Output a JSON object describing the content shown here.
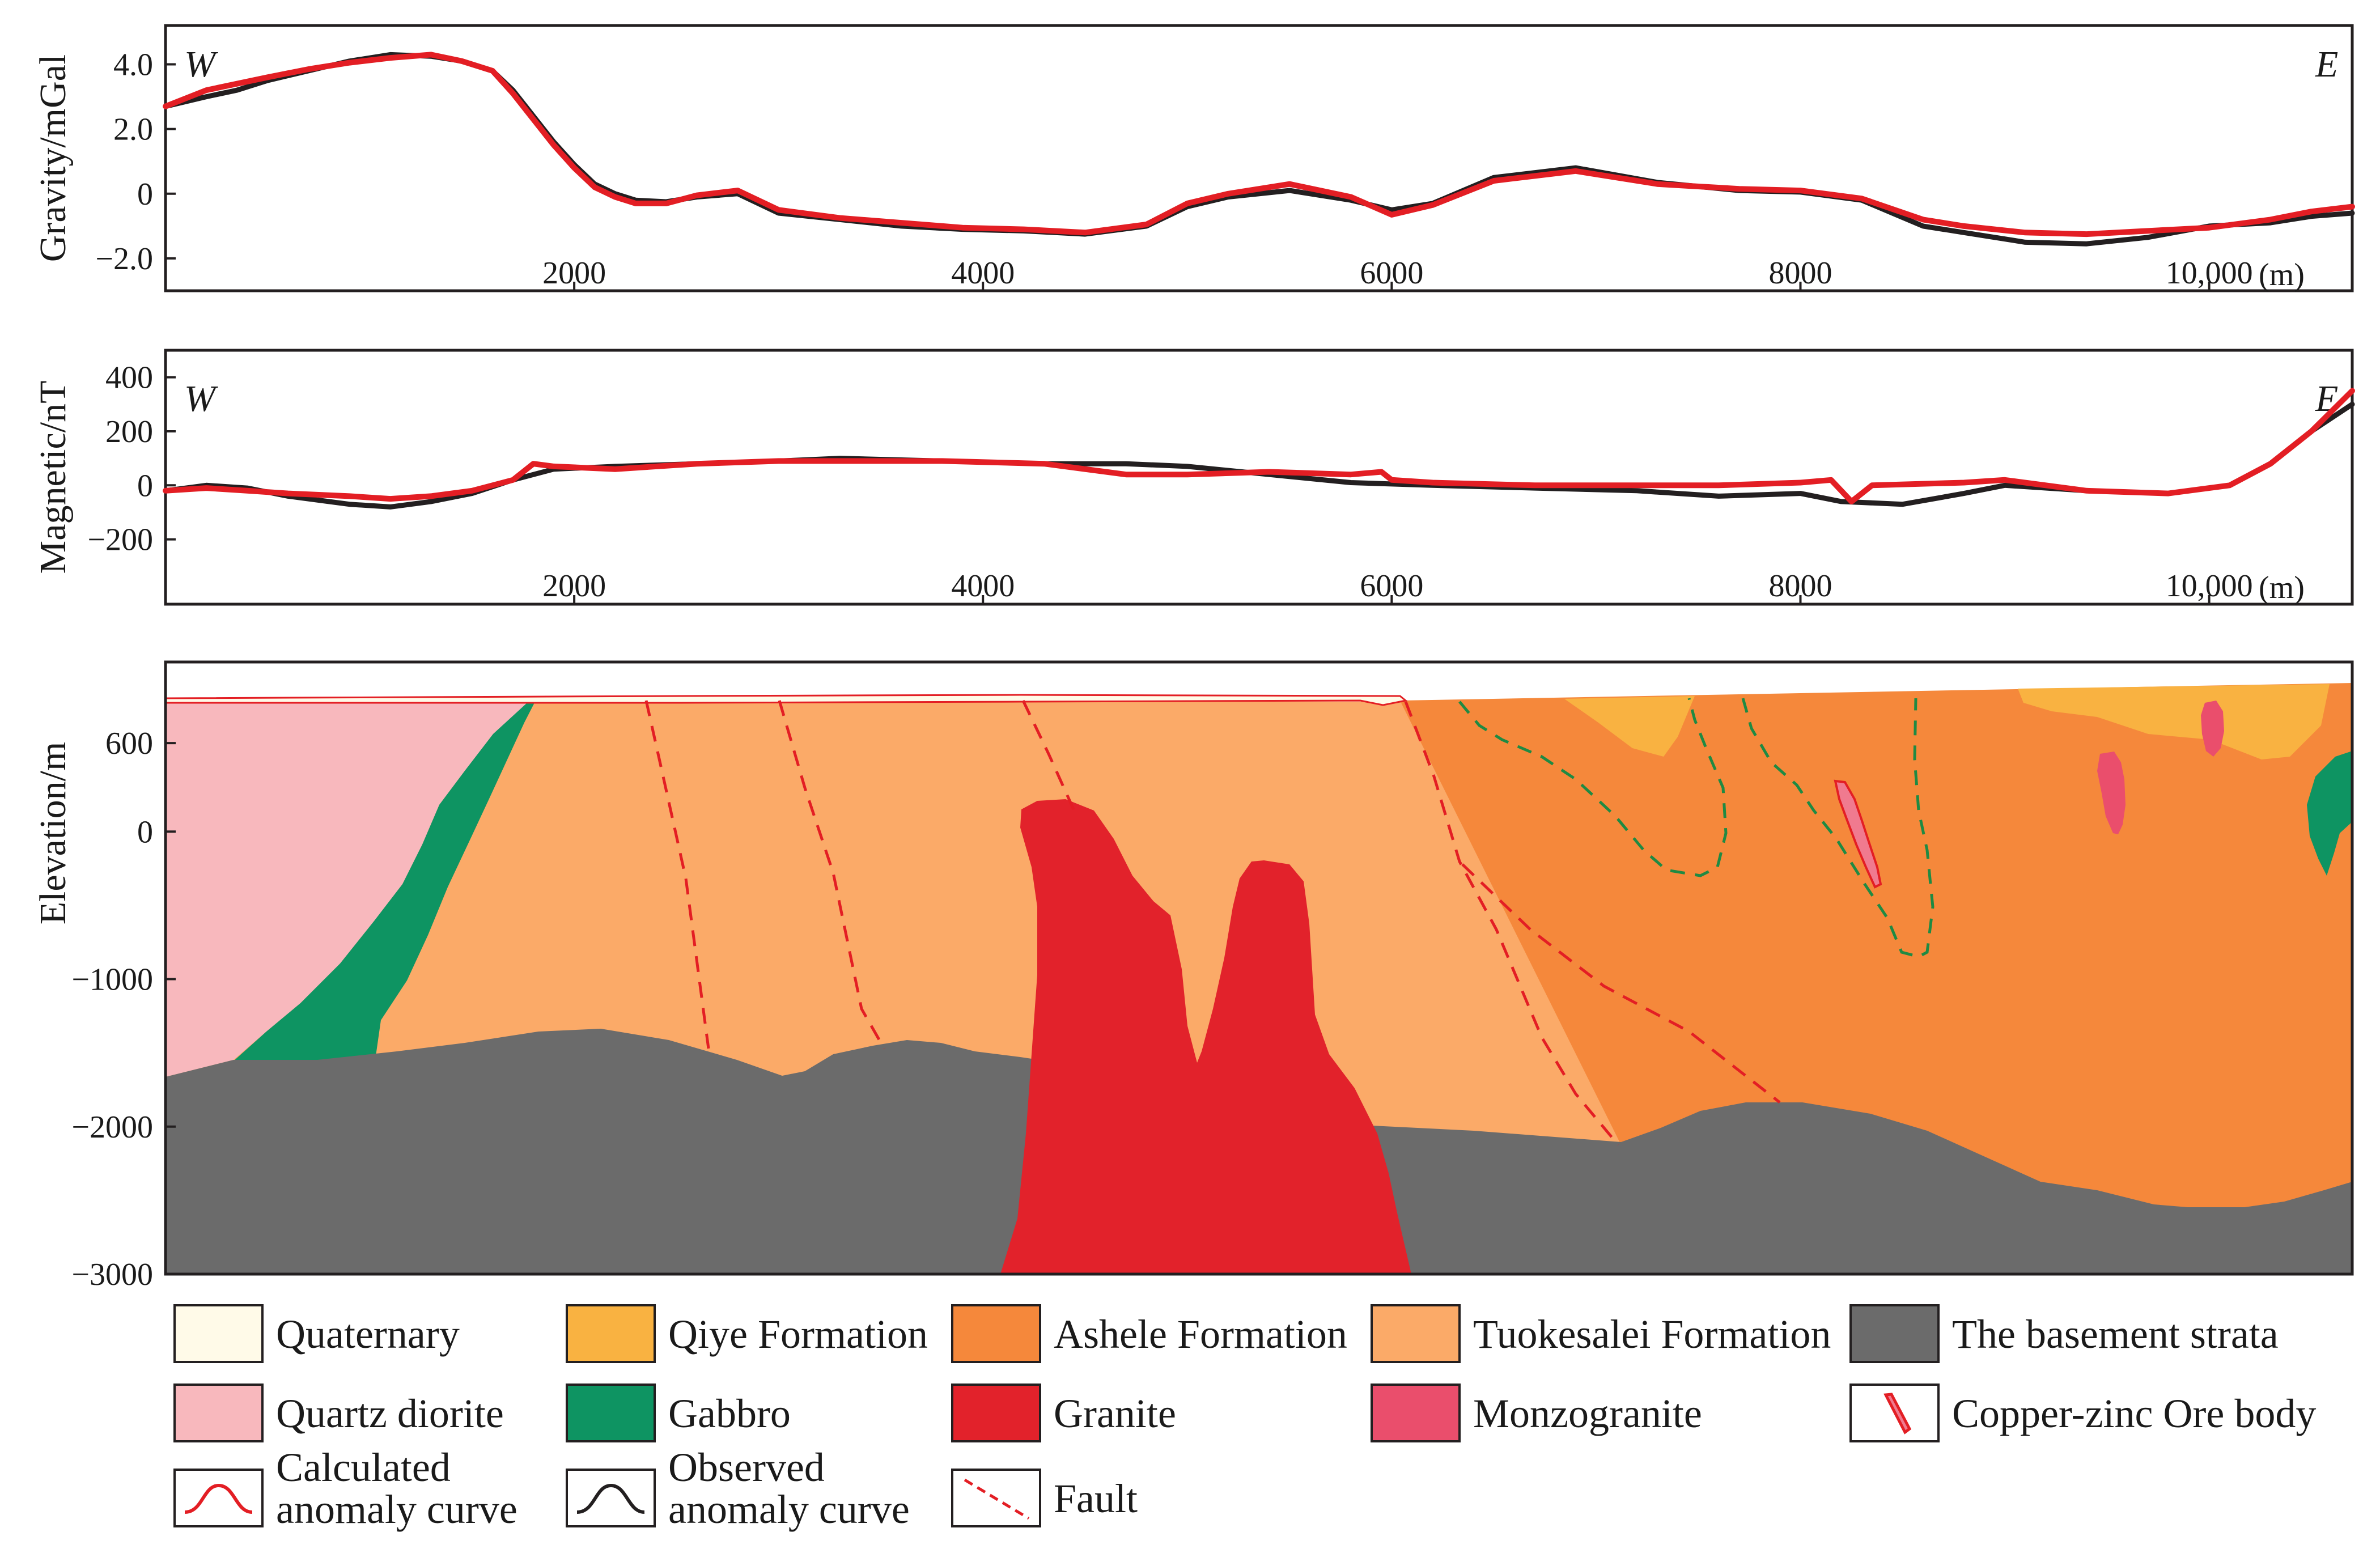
{
  "chart_data": [
    {
      "type": "line",
      "id": "gravity",
      "ylabel": "Gravity/mGal",
      "xlim": [
        0,
        10700
      ],
      "ylim": [
        -3,
        5.2
      ],
      "yticks": [
        4,
        2,
        0,
        -2
      ],
      "ytick_labels": [
        "4.0",
        "2.0",
        "0",
        "−2.0"
      ],
      "xticks": [
        2000,
        4000,
        6000,
        8000,
        10000
      ],
      "xtick_labels": [
        "2000",
        "4000",
        "6000",
        "8000",
        "10,000"
      ],
      "x_unit": "(m)",
      "west_label": "W",
      "east_label": "E",
      "series": [
        {
          "name": "Observed anomaly curve",
          "color": "#231f20",
          "x": [
            0,
            200,
            350,
            500,
            700,
            900,
            1100,
            1300,
            1450,
            1600,
            1700,
            1800,
            1900,
            2000,
            2100,
            2200,
            2300,
            2450,
            2600,
            2800,
            3000,
            3300,
            3600,
            3900,
            4200,
            4500,
            4800,
            5000,
            5200,
            5500,
            5800,
            6000,
            6200,
            6500,
            6900,
            7300,
            7700,
            8000,
            8300,
            8600,
            8800,
            9100,
            9400,
            9700,
            10000,
            10300,
            10500,
            10700
          ],
          "values": [
            2.7,
            3.0,
            3.2,
            3.5,
            3.8,
            4.1,
            4.3,
            4.25,
            4.1,
            3.8,
            3.2,
            2.4,
            1.6,
            0.9,
            0.3,
            0.0,
            -0.2,
            -0.25,
            -0.1,
            0.0,
            -0.6,
            -0.8,
            -1.0,
            -1.1,
            -1.15,
            -1.25,
            -1.0,
            -0.4,
            -0.1,
            0.1,
            -0.2,
            -0.5,
            -0.3,
            0.5,
            0.8,
            0.35,
            0.1,
            0.05,
            -0.2,
            -1.0,
            -1.2,
            -1.5,
            -1.55,
            -1.35,
            -1.0,
            -0.9,
            -0.7,
            -0.6
          ]
        },
        {
          "name": "Calculated anomaly curve",
          "color": "#e31e24",
          "x": [
            0,
            200,
            350,
            500,
            700,
            900,
            1100,
            1300,
            1450,
            1600,
            1700,
            1800,
            1900,
            2000,
            2100,
            2200,
            2300,
            2450,
            2600,
            2800,
            3000,
            3300,
            3600,
            3900,
            4200,
            4500,
            4800,
            5000,
            5200,
            5500,
            5800,
            6000,
            6200,
            6500,
            6900,
            7300,
            7700,
            8000,
            8300,
            8600,
            8800,
            9100,
            9400,
            9700,
            10000,
            10300,
            10500,
            10700
          ],
          "values": [
            2.7,
            3.2,
            3.4,
            3.6,
            3.85,
            4.05,
            4.2,
            4.3,
            4.1,
            3.8,
            3.1,
            2.3,
            1.5,
            0.8,
            0.2,
            -0.1,
            -0.3,
            -0.3,
            -0.05,
            0.1,
            -0.5,
            -0.75,
            -0.9,
            -1.05,
            -1.1,
            -1.2,
            -0.95,
            -0.3,
            0.0,
            0.3,
            -0.1,
            -0.65,
            -0.35,
            0.4,
            0.7,
            0.3,
            0.15,
            0.1,
            -0.15,
            -0.8,
            -1.0,
            -1.2,
            -1.25,
            -1.15,
            -1.05,
            -0.8,
            -0.55,
            -0.4
          ]
        }
      ]
    },
    {
      "type": "line",
      "id": "magnetic",
      "ylabel": "Magnetic/nT",
      "xlim": [
        0,
        10700
      ],
      "ylim": [
        -440,
        500
      ],
      "yticks": [
        400,
        200,
        0,
        -200
      ],
      "ytick_labels": [
        "400",
        "200",
        "0",
        "−200"
      ],
      "xticks": [
        2000,
        4000,
        6000,
        8000,
        10000
      ],
      "xtick_labels": [
        "2000",
        "4000",
        "6000",
        "8000",
        "10,000"
      ],
      "x_unit": "(m)",
      "west_label": "W",
      "east_label": "E",
      "series": [
        {
          "name": "Observed anomaly curve",
          "color": "#231f20",
          "x": [
            0,
            200,
            400,
            600,
            900,
            1100,
            1300,
            1500,
            1700,
            1900,
            2200,
            2600,
            3000,
            3300,
            3800,
            4300,
            4700,
            5000,
            5400,
            5800,
            6200,
            6700,
            7200,
            7600,
            8000,
            8200,
            8500,
            8800,
            9000,
            9400,
            9800,
            10100,
            10300,
            10500,
            10700
          ],
          "values": [
            -20,
            0,
            -10,
            -40,
            -70,
            -80,
            -60,
            -30,
            20,
            60,
            70,
            80,
            90,
            100,
            90,
            80,
            80,
            70,
            40,
            10,
            0,
            -10,
            -20,
            -40,
            -30,
            -60,
            -70,
            -30,
            0,
            -20,
            -30,
            0,
            80,
            200,
            300
          ]
        },
        {
          "name": "Calculated anomaly curve",
          "color": "#e31e24",
          "x": [
            0,
            200,
            400,
            600,
            900,
            1100,
            1300,
            1500,
            1700,
            1800,
            1900,
            2200,
            2600,
            3000,
            3300,
            3800,
            4300,
            4700,
            5000,
            5400,
            5800,
            5950,
            6000,
            6200,
            6700,
            7200,
            7600,
            8000,
            8150,
            8250,
            8350,
            8800,
            9000,
            9400,
            9800,
            10100,
            10300,
            10500,
            10700
          ],
          "values": [
            -20,
            -10,
            -20,
            -30,
            -40,
            -50,
            -40,
            -20,
            20,
            80,
            70,
            60,
            80,
            90,
            90,
            90,
            80,
            40,
            40,
            50,
            40,
            50,
            20,
            10,
            0,
            0,
            0,
            10,
            20,
            -60,
            0,
            10,
            20,
            -20,
            -30,
            0,
            80,
            200,
            350
          ]
        }
      ]
    },
    {
      "type": "area",
      "id": "geologic-section",
      "ylabel": "Elevation/m",
      "xlim": [
        0,
        10700
      ],
      "ylim": [
        -3000,
        1150
      ],
      "yticks": [
        600,
        0,
        -1000,
        -2000,
        -3000
      ],
      "ytick_labels": [
        "600",
        "0",
        "−1000",
        "−2000",
        "−3000"
      ],
      "units": [
        {
          "name": "The basement strata",
          "color": "#6b6b6b"
        },
        {
          "name": "Tuokesalei Formation",
          "color": "#fbaa68"
        },
        {
          "name": "Ashele Formation",
          "color": "#f5883b"
        },
        {
          "name": "Qiye Formation",
          "color": "#f9b241"
        },
        {
          "name": "Quartz diorite",
          "color": "#f8b8bd"
        },
        {
          "name": "Gabbro",
          "color": "#0e9462"
        },
        {
          "name": "Granite",
          "color": "#e2222b"
        },
        {
          "name": "Monzogranite",
          "color": "#ea4e6c"
        },
        {
          "name": "Quaternary",
          "color": "#fffae8"
        }
      ],
      "ore_body_color": "#f07a8f",
      "fault_color": "#e31e24",
      "contact_color": "#1f8a43"
    }
  ],
  "legend": [
    {
      "key": "quaternary",
      "label": "Quaternary",
      "kind": "swatch",
      "color": "#fffae8"
    },
    {
      "key": "qiye",
      "label": "Qiye Formation",
      "kind": "swatch",
      "color": "#f9b241"
    },
    {
      "key": "ashele",
      "label": "Ashele Formation",
      "kind": "swatch",
      "color": "#f5883b"
    },
    {
      "key": "tuokesalei",
      "label": "Tuokesalei Formation",
      "kind": "swatch",
      "color": "#fbaa68"
    },
    {
      "key": "basement",
      "label": "The basement strata",
      "kind": "swatch",
      "color": "#6b6b6b"
    },
    {
      "key": "quartz-diorite",
      "label": "Quartz diorite",
      "kind": "swatch",
      "color": "#f8b8bd"
    },
    {
      "key": "gabbro",
      "label": "Gabbro",
      "kind": "swatch",
      "color": "#0e9462"
    },
    {
      "key": "granite",
      "label": "Granite",
      "kind": "swatch",
      "color": "#e2222b"
    },
    {
      "key": "monzogranite",
      "label": "Monzogranite",
      "kind": "swatch",
      "color": "#ea4e6c"
    },
    {
      "key": "ore-body",
      "label": "Copper-zinc Ore body",
      "kind": "orebody",
      "color": "#e31e24"
    },
    {
      "key": "calculated",
      "label": "Calculated\nanomaly curve",
      "kind": "curve",
      "color": "#e31e24"
    },
    {
      "key": "observed",
      "label": "Observed\nanomaly curve",
      "kind": "curve",
      "color": "#231f20"
    },
    {
      "key": "fault",
      "label": "Fault",
      "kind": "fault",
      "color": "#e31e24"
    }
  ]
}
